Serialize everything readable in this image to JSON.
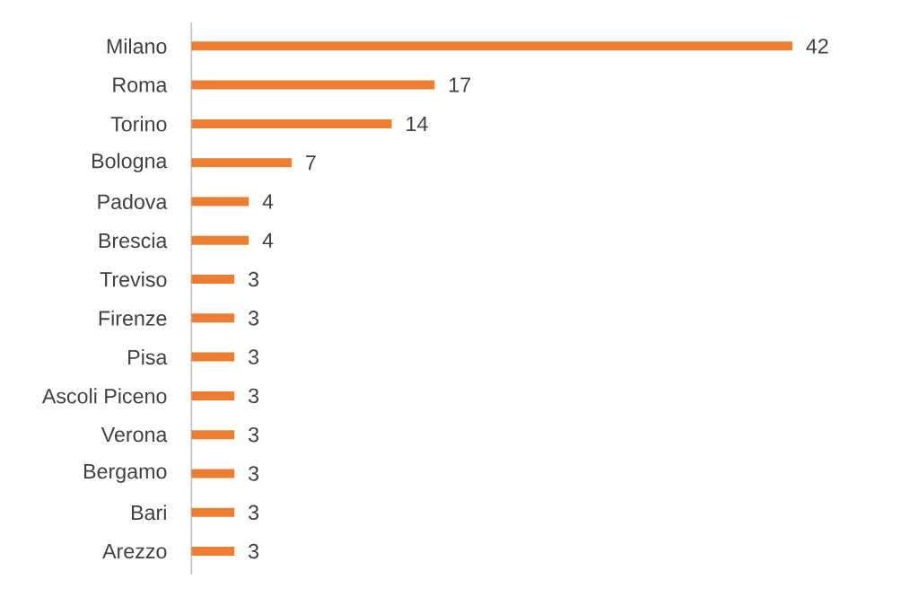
{
  "chart_data": {
    "type": "bar",
    "orientation": "horizontal",
    "categories": [
      "Milano",
      "Roma",
      "Torino",
      "Bologna",
      "Padova",
      "Brescia",
      "Treviso",
      "Firenze",
      "Pisa",
      "Ascoli Piceno",
      "Verona",
      "Bergamo",
      "Bari",
      "Arezzo"
    ],
    "values": [
      42,
      17,
      14,
      7,
      4,
      4,
      3,
      3,
      3,
      3,
      3,
      3,
      3,
      3
    ],
    "color": "#ed7d31",
    "data_labels": true
  }
}
